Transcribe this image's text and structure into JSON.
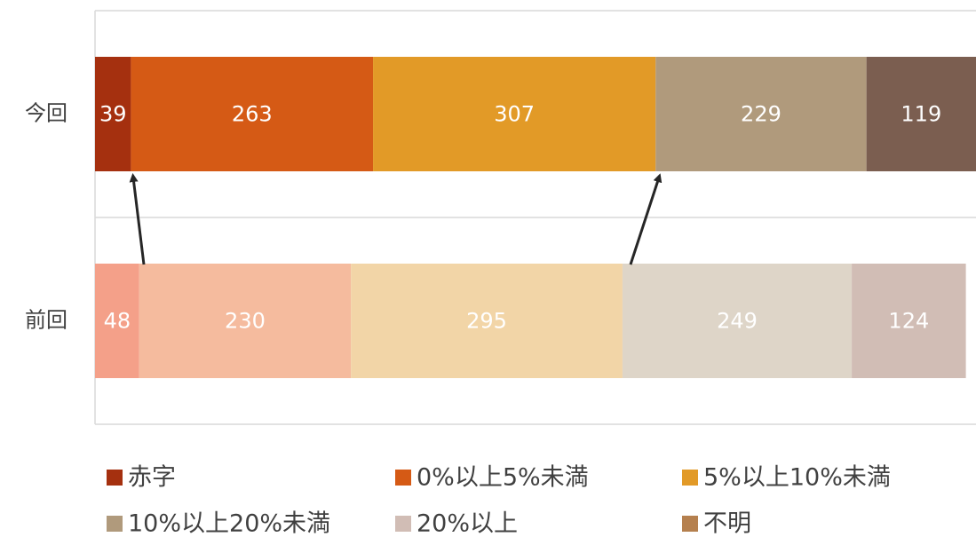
{
  "chart_data": {
    "type": "stacked-barh",
    "categories": [
      "今回",
      "前回"
    ],
    "series": [
      {
        "name": "赤字",
        "color": "#a5300f",
        "point_colors": [
          "#a5300f",
          "#f4a089"
        ],
        "values": [
          39,
          48
        ]
      },
      {
        "name": "0%以上5%未満",
        "color": "#d55a15",
        "point_colors": [
          "#d55a15",
          "#f5bb9e"
        ],
        "values": [
          263,
          230
        ]
      },
      {
        "name": "5%以上10%未満",
        "color": "#e29a27",
        "point_colors": [
          "#e29a27",
          "#f2d5a7"
        ],
        "values": [
          307,
          295
        ]
      },
      {
        "name": "10%以上20%未満",
        "color": "#b09a7c",
        "point_colors": [
          "#b09a7c",
          "#ded5c8"
        ],
        "values": [
          229,
          249
        ]
      },
      {
        "name": "20%以上",
        "color": "#d1bdb5",
        "point_colors": [
          "#7b5e50",
          "#d1bdb5"
        ],
        "values": [
          119,
          124
        ]
      },
      {
        "name": "不明",
        "color": "#b5804e",
        "point_colors": [
          "#b5804e",
          "#e3cbb4"
        ],
        "values": [
          null,
          null
        ]
      }
    ]
  }
}
